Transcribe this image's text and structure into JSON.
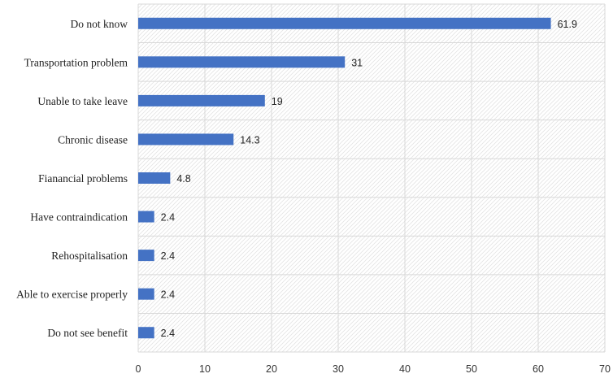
{
  "chart_data": {
    "type": "bar",
    "orientation": "horizontal",
    "categories": [
      "Do not know",
      "Transportation problem",
      "Unable to take leave",
      "Chronic disease",
      "Fianancial problems",
      "Have contraindication",
      "Rehospitalisation",
      "Able to exercise properly",
      "Do not see benefit"
    ],
    "values": [
      61.9,
      31,
      19,
      14.3,
      4.8,
      2.4,
      2.4,
      2.4,
      2.4
    ],
    "data_labels": [
      "61.9",
      "31",
      "19",
      "14.3",
      "4.8",
      "2.4",
      "2.4",
      "2.4",
      "2.4"
    ],
    "xlim": [
      0,
      70
    ],
    "x_ticks": [
      0,
      10,
      20,
      30,
      40,
      50,
      60,
      70
    ],
    "x_tick_labels": [
      "0",
      "10",
      "20",
      "30",
      "40",
      "50",
      "60",
      "70"
    ],
    "title": "",
    "xlabel": "",
    "ylabel": "",
    "grid": true,
    "legend": "none",
    "colors": {
      "bar": "#4472C4",
      "grid": "#d9d9d9",
      "plot_pattern": "#e4e4e4"
    }
  }
}
